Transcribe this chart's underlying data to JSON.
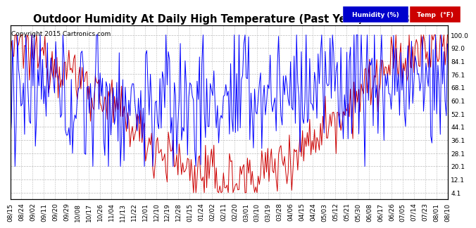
{
  "title": "Outdoor Humidity At Daily High Temperature (Past Year) 20150815",
  "copyright": "Copyright 2015 Cartronics.com",
  "background_color": "#ffffff",
  "plot_bg_color": "#ffffff",
  "grid_color": "#bbbbbb",
  "y_ticks": [
    4.1,
    12.1,
    20.1,
    28.1,
    36.1,
    44.1,
    52.1,
    60.1,
    68.1,
    76.1,
    84.1,
    92.0,
    100.0
  ],
  "y_tick_labels": [
    "4.1",
    "12.1",
    "20.1",
    "28.1",
    "36.1",
    "44.1",
    "52.1",
    "60.1",
    "68.1",
    "76.1",
    "84.1",
    "92.0",
    "100.0"
  ],
  "ylim": [
    0,
    106
  ],
  "x_labels": [
    "08/15",
    "08/24",
    "09/02",
    "09/11",
    "09/20",
    "09/29",
    "10/08",
    "10/17",
    "10/26",
    "11/04",
    "11/13",
    "11/22",
    "12/01",
    "12/10",
    "12/19",
    "12/28",
    "01/15",
    "01/24",
    "02/02",
    "02/11",
    "02/20",
    "03/01",
    "03/10",
    "03/19",
    "03/28",
    "04/06",
    "04/15",
    "04/24",
    "05/03",
    "05/12",
    "05/21",
    "05/30",
    "06/08",
    "06/17",
    "06/26",
    "07/05",
    "07/14",
    "07/23",
    "08/01",
    "08/10"
  ],
  "humidity_color": "#0000ff",
  "temp_color": "#cc0000",
  "legend_humidity_bg": "#0000cc",
  "legend_temp_bg": "#cc0000",
  "legend_humidity_text": "Humidity (%)",
  "legend_temp_text": "Temp  (°F)",
  "title_fontsize": 10.5,
  "copyright_fontsize": 6.5,
  "tick_fontsize": 6.5,
  "legend_fontsize": 6.5,
  "n_days": 366
}
